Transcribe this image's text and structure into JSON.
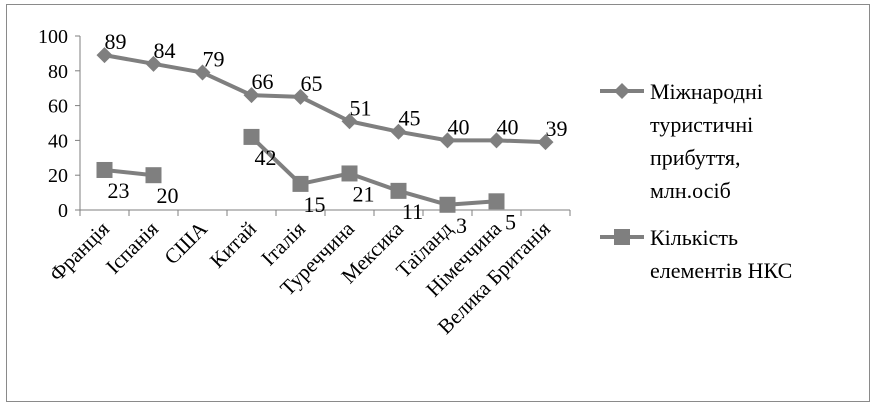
{
  "chart_data": {
    "type": "line",
    "categories": [
      "Франція",
      "Іспанія",
      "США",
      "Китай",
      "Італія",
      "Туреччина",
      "Мексика",
      "Таїланд",
      "Німеччина",
      "Велика Британія"
    ],
    "ylim": [
      0,
      100
    ],
    "yticks": [
      0,
      20,
      40,
      60,
      80,
      100
    ],
    "grid": false,
    "legend_position": "right",
    "series": [
      {
        "name": "Міжнародні туристичні прибуття, млн.осіб",
        "legend_lines": [
          "Міжнародні",
          "туристичні",
          "прибуття,",
          "млн.осіб"
        ],
        "marker": "diamond",
        "color": "#7f7f7f",
        "values": [
          89,
          84,
          79,
          66,
          65,
          51,
          45,
          40,
          40,
          39
        ]
      },
      {
        "name": "Кількість елементів НКС",
        "legend_lines": [
          "Кількість",
          "елементів НКС"
        ],
        "marker": "square",
        "color": "#7f7f7f",
        "values": [
          23,
          20,
          null,
          42,
          15,
          21,
          11,
          3,
          5,
          null
        ]
      }
    ]
  }
}
